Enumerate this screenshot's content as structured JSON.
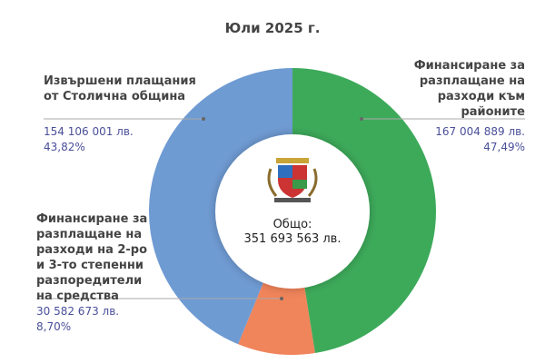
{
  "chart_data": {
    "type": "pie",
    "variant": "donut",
    "title": "Юли  2025 г.",
    "center_label": "Общо:",
    "center_value": "351 693 563 лв.",
    "slices": [
      {
        "label": "Финансиране за разплащане на разходи към районите",
        "value": 167004889,
        "value_text": "167 004 889 лв.",
        "percent_text": "47,49%",
        "color": "#3daa5a"
      },
      {
        "label": "Финансиране за разплащане на разходи на 2-ро и 3-то степенни разпоредители на средства",
        "value": 30582673,
        "value_text": "30 582 673 лв.",
        "percent_text": "8,70%",
        "color": "#f0845a"
      },
      {
        "label": "Извършени плащания от Столична община",
        "value": 154106001,
        "value_text": "154 106 001 лв.",
        "percent_text": "43,82%",
        "color": "#6f9bd3"
      }
    ],
    "legend": "callouts"
  }
}
